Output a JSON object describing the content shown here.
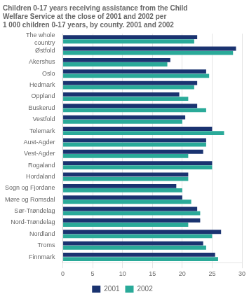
{
  "chart_data": {
    "type": "bar",
    "orientation": "horizontal",
    "title": "Children 0-17 years receiving assistance from the Child\nWelfare Service at the close of 2001 and 2002 per\n1 000 children 0-17 years, by county. 2001 and 2002",
    "categories": [
      "The whole\ncountry",
      "Østfold",
      "Akershus",
      "Oslo",
      "Hedmark",
      "Oppland",
      "Buskerud",
      "Vestfold",
      "Telemark",
      "Aust-Agder",
      "Vest-Agder",
      "Rogaland",
      "Hordaland",
      "Sogn og Fjordane",
      "Møre og Romsdal",
      "Sør-Trøndelag",
      "Nord-Trøndelag",
      "Nordland",
      "Troms",
      "Finnmark"
    ],
    "series": [
      {
        "name": "2001",
        "color": "#1a3370",
        "values": [
          22.5,
          29.0,
          18.0,
          24.0,
          22.5,
          19.5,
          22.5,
          20.5,
          25.0,
          24.0,
          23.5,
          25.0,
          21.0,
          19.0,
          20.0,
          22.5,
          23.0,
          26.5,
          23.5,
          25.5
        ]
      },
      {
        "name": "2002",
        "color": "#2aaa99",
        "values": [
          22.0,
          28.5,
          17.5,
          24.5,
          22.0,
          21.0,
          24.0,
          20.0,
          27.0,
          24.0,
          21.0,
          25.0,
          21.0,
          20.0,
          21.5,
          23.0,
          21.0,
          25.0,
          24.0,
          26.0
        ]
      }
    ],
    "xlim": [
      0,
      30
    ],
    "xticks": [
      0,
      5,
      10,
      15,
      20,
      25,
      30
    ],
    "grid": true,
    "legend": "bottom"
  }
}
